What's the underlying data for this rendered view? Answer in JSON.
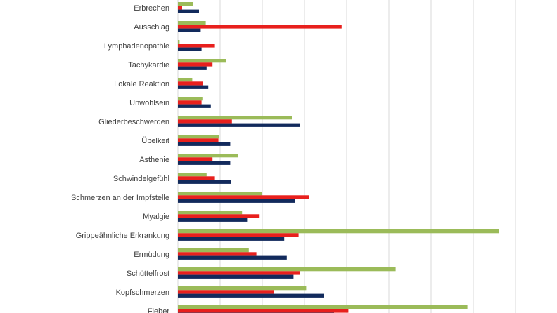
{
  "chart_data": {
    "type": "bar",
    "orientation": "horizontal",
    "categories": [
      "Erbrechen",
      "Ausschlag",
      "Lymphadenopathie",
      "Tachykardie",
      "Lokale Reaktion",
      "Unwohlsein",
      "Gliederbeschwerden",
      "Übelkeit",
      "Asthenie",
      "Schwindelgefühl",
      "Schmerzen an der Impfstelle",
      "Myalgie",
      "Grippeähnliche Erkrankung",
      "Ermüdung",
      "Schüttelfrost",
      "Kopfschmerzen",
      "Fieber"
    ],
    "series": [
      {
        "color": "#9bbb59",
        "values": [
          1.8,
          3.3,
          0.2,
          5.7,
          1.7,
          2.9,
          13.5,
          4.9,
          7.1,
          3.4,
          10.0,
          7.6,
          38.0,
          8.4,
          25.8,
          15.2,
          34.3
        ]
      },
      {
        "color": "#e8201d",
        "values": [
          0.5,
          19.4,
          4.3,
          4.1,
          3.0,
          2.8,
          6.4,
          4.8,
          4.1,
          4.3,
          15.5,
          9.6,
          14.3,
          9.3,
          14.5,
          11.4,
          20.2
        ]
      },
      {
        "color": "#122a5c",
        "values": [
          2.5,
          2.7,
          2.8,
          3.4,
          3.6,
          3.9,
          14.5,
          6.2,
          6.2,
          6.3,
          13.9,
          8.2,
          12.6,
          12.9,
          13.7,
          17.3,
          18.5
        ]
      }
    ],
    "xlim": [
      0,
      40
    ],
    "x_gridlines": [
      0,
      5,
      10,
      15,
      20,
      25,
      30,
      35,
      40
    ],
    "grid": true,
    "legend": false
  }
}
